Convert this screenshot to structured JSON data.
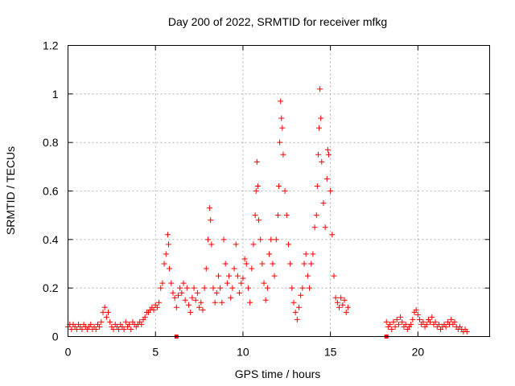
{
  "chart_data": {
    "type": "scatter",
    "title": "Day 200 of 2022, SRMTID for receiver mfkg",
    "xlabel": "GPS time / hours",
    "ylabel": "SRMTID / TECUs",
    "xlim": [
      0,
      24.1
    ],
    "ylim": [
      0,
      1.2
    ],
    "x_ticks": [
      0,
      5,
      10,
      15,
      20
    ],
    "x_tick_labels": [
      "0",
      "5",
      "10",
      "15",
      "20"
    ],
    "y_ticks": [
      0,
      0.2,
      0.4,
      0.6,
      0.8,
      1.0,
      1.2
    ],
    "y_tick_labels": [
      "0",
      "0.2",
      "0.4",
      "0.6",
      "0.8",
      "1",
      "1.2"
    ],
    "grid": true,
    "marker": "plus",
    "color": "#ff0000",
    "series": [
      {
        "name": "SRMTID",
        "points": [
          [
            0.0,
            0.04
          ],
          [
            0.1,
            0.05
          ],
          [
            0.2,
            0.03
          ],
          [
            0.3,
            0.05
          ],
          [
            0.4,
            0.04
          ],
          [
            0.5,
            0.03
          ],
          [
            0.6,
            0.05
          ],
          [
            0.7,
            0.04
          ],
          [
            0.8,
            0.03
          ],
          [
            0.9,
            0.05
          ],
          [
            1.0,
            0.04
          ],
          [
            1.1,
            0.03
          ],
          [
            1.2,
            0.04
          ],
          [
            1.3,
            0.05
          ],
          [
            1.4,
            0.03
          ],
          [
            1.5,
            0.04
          ],
          [
            1.6,
            0.03
          ],
          [
            1.7,
            0.05
          ],
          [
            1.8,
            0.04
          ],
          [
            1.9,
            0.06
          ],
          [
            2.0,
            0.1
          ],
          [
            2.1,
            0.12
          ],
          [
            2.2,
            0.08
          ],
          [
            2.3,
            0.1
          ],
          [
            2.4,
            0.06
          ],
          [
            2.5,
            0.04
          ],
          [
            2.6,
            0.03
          ],
          [
            2.7,
            0.05
          ],
          [
            2.8,
            0.04
          ],
          [
            2.9,
            0.03
          ],
          [
            3.0,
            0.05
          ],
          [
            3.1,
            0.04
          ],
          [
            3.2,
            0.03
          ],
          [
            3.3,
            0.06
          ],
          [
            3.4,
            0.04
          ],
          [
            3.5,
            0.05
          ],
          [
            3.6,
            0.03
          ],
          [
            3.7,
            0.06
          ],
          [
            3.8,
            0.05
          ],
          [
            3.9,
            0.04
          ],
          [
            4.0,
            0.05
          ],
          [
            4.1,
            0.06
          ],
          [
            4.2,
            0.05
          ],
          [
            4.3,
            0.07
          ],
          [
            4.4,
            0.08
          ],
          [
            4.5,
            0.1
          ],
          [
            4.6,
            0.1
          ],
          [
            4.7,
            0.11
          ],
          [
            4.8,
            0.12
          ],
          [
            4.9,
            0.11
          ],
          [
            5.0,
            0.13
          ],
          [
            5.1,
            0.12
          ],
          [
            5.2,
            0.14
          ],
          [
            5.3,
            0.2
          ],
          [
            5.4,
            0.22
          ],
          [
            5.5,
            0.3
          ],
          [
            5.6,
            0.34
          ],
          [
            5.7,
            0.42
          ],
          [
            5.75,
            0.38
          ],
          [
            5.8,
            0.28
          ],
          [
            5.9,
            0.22
          ],
          [
            6.0,
            0.18
          ],
          [
            6.1,
            0.16
          ],
          [
            6.2,
            0.12
          ],
          [
            6.3,
            0.17
          ],
          [
            6.4,
            0.2
          ],
          [
            6.5,
            0.18
          ],
          [
            6.6,
            0.22
          ],
          [
            6.7,
            0.15
          ],
          [
            6.8,
            0.2
          ],
          [
            6.9,
            0.13
          ],
          [
            7.0,
            0.1
          ],
          [
            7.1,
            0.16
          ],
          [
            7.2,
            0.2
          ],
          [
            7.3,
            0.15
          ],
          [
            7.4,
            0.18
          ],
          [
            7.5,
            0.12
          ],
          [
            7.6,
            0.14
          ],
          [
            7.7,
            0.11
          ],
          [
            7.8,
            0.2
          ],
          [
            7.9,
            0.28
          ],
          [
            8.0,
            0.4
          ],
          [
            8.1,
            0.53
          ],
          [
            8.15,
            0.48
          ],
          [
            8.2,
            0.38
          ],
          [
            8.3,
            0.2
          ],
          [
            8.4,
            0.14
          ],
          [
            8.5,
            0.18
          ],
          [
            8.6,
            0.25
          ],
          [
            8.7,
            0.2
          ],
          [
            8.8,
            0.14
          ],
          [
            8.9,
            0.4
          ],
          [
            9.0,
            0.3
          ],
          [
            9.1,
            0.22
          ],
          [
            9.2,
            0.25
          ],
          [
            9.3,
            0.16
          ],
          [
            9.4,
            0.2
          ],
          [
            9.5,
            0.28
          ],
          [
            9.6,
            0.38
          ],
          [
            9.7,
            0.25
          ],
          [
            9.8,
            0.18
          ],
          [
            9.9,
            0.22
          ],
          [
            10.0,
            0.24
          ],
          [
            10.1,
            0.32
          ],
          [
            10.2,
            0.3
          ],
          [
            10.3,
            0.2
          ],
          [
            10.4,
            0.14
          ],
          [
            10.5,
            0.28
          ],
          [
            10.6,
            0.38
          ],
          [
            10.7,
            0.5
          ],
          [
            10.75,
            0.6
          ],
          [
            10.8,
            0.72
          ],
          [
            10.85,
            0.62
          ],
          [
            10.9,
            0.48
          ],
          [
            11.0,
            0.4
          ],
          [
            11.1,
            0.3
          ],
          [
            11.2,
            0.22
          ],
          [
            11.3,
            0.15
          ],
          [
            11.4,
            0.2
          ],
          [
            11.5,
            0.34
          ],
          [
            11.6,
            0.4
          ],
          [
            11.7,
            0.3
          ],
          [
            11.8,
            0.25
          ],
          [
            11.9,
            0.4
          ],
          [
            12.0,
            0.5
          ],
          [
            12.05,
            0.62
          ],
          [
            12.1,
            0.8
          ],
          [
            12.15,
            0.97
          ],
          [
            12.2,
            0.9
          ],
          [
            12.25,
            0.86
          ],
          [
            12.3,
            0.75
          ],
          [
            12.4,
            0.6
          ],
          [
            12.5,
            0.5
          ],
          [
            12.6,
            0.38
          ],
          [
            12.7,
            0.3
          ],
          [
            12.8,
            0.2
          ],
          [
            12.9,
            0.14
          ],
          [
            13.0,
            0.1
          ],
          [
            13.1,
            0.07
          ],
          [
            13.2,
            0.12
          ],
          [
            13.3,
            0.17
          ],
          [
            13.4,
            0.2
          ],
          [
            13.5,
            0.3
          ],
          [
            13.6,
            0.34
          ],
          [
            13.7,
            0.25
          ],
          [
            13.8,
            0.2
          ],
          [
            13.9,
            0.3
          ],
          [
            14.0,
            0.34
          ],
          [
            14.1,
            0.45
          ],
          [
            14.2,
            0.5
          ],
          [
            14.25,
            0.62
          ],
          [
            14.3,
            0.75
          ],
          [
            14.35,
            0.86
          ],
          [
            14.4,
            1.02
          ],
          [
            14.45,
            0.9
          ],
          [
            14.5,
            0.72
          ],
          [
            14.6,
            0.55
          ],
          [
            14.7,
            0.45
          ],
          [
            14.8,
            0.65
          ],
          [
            14.85,
            0.77
          ],
          [
            14.9,
            0.75
          ],
          [
            15.0,
            0.6
          ],
          [
            15.1,
            0.42
          ],
          [
            15.2,
            0.25
          ],
          [
            15.3,
            0.16
          ],
          [
            15.4,
            0.14
          ],
          [
            15.5,
            0.12
          ],
          [
            15.6,
            0.16
          ],
          [
            15.7,
            0.13
          ],
          [
            15.8,
            0.15
          ],
          [
            15.9,
            0.1
          ],
          [
            16.0,
            0.12
          ],
          [
            18.2,
            0.06
          ],
          [
            18.3,
            0.04
          ],
          [
            18.4,
            0.05
          ],
          [
            18.5,
            0.03
          ],
          [
            18.6,
            0.06
          ],
          [
            18.7,
            0.04
          ],
          [
            18.8,
            0.07
          ],
          [
            18.9,
            0.05
          ],
          [
            19.0,
            0.08
          ],
          [
            19.1,
            0.06
          ],
          [
            19.2,
            0.04
          ],
          [
            19.3,
            0.05
          ],
          [
            19.4,
            0.03
          ],
          [
            19.5,
            0.04
          ],
          [
            19.6,
            0.05
          ],
          [
            19.7,
            0.07
          ],
          [
            19.8,
            0.1
          ],
          [
            19.9,
            0.11
          ],
          [
            20.0,
            0.09
          ],
          [
            20.1,
            0.07
          ],
          [
            20.2,
            0.05
          ],
          [
            20.3,
            0.06
          ],
          [
            20.4,
            0.04
          ],
          [
            20.5,
            0.05
          ],
          [
            20.6,
            0.07
          ],
          [
            20.7,
            0.06
          ],
          [
            20.8,
            0.08
          ],
          [
            20.9,
            0.05
          ],
          [
            21.0,
            0.06
          ],
          [
            21.1,
            0.04
          ],
          [
            21.2,
            0.05
          ],
          [
            21.3,
            0.03
          ],
          [
            21.4,
            0.04
          ],
          [
            21.5,
            0.05
          ],
          [
            21.6,
            0.04
          ],
          [
            21.7,
            0.06
          ],
          [
            21.8,
            0.05
          ],
          [
            21.9,
            0.07
          ],
          [
            22.0,
            0.05
          ],
          [
            22.1,
            0.06
          ],
          [
            22.2,
            0.04
          ],
          [
            22.3,
            0.03
          ],
          [
            22.4,
            0.04
          ],
          [
            22.5,
            0.03
          ],
          [
            22.6,
            0.02
          ],
          [
            22.7,
            0.03
          ],
          [
            22.8,
            0.02
          ]
        ]
      }
    ],
    "zero_markers_x": [
      6.2,
      18.2
    ]
  }
}
